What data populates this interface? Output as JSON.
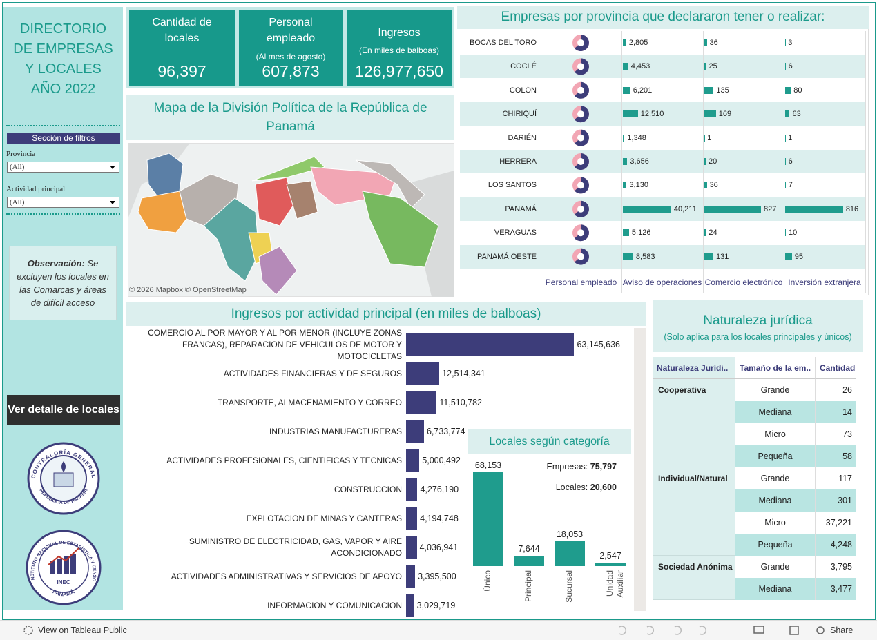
{
  "sidebar": {
    "title": "DIRECTORIO DE EMPRESAS Y LOCALES AÑO 2022",
    "filters_heading": "Sección de filtros",
    "filters": [
      {
        "label": "Provincia",
        "value": "(All)"
      },
      {
        "label": "Actividad  principal",
        "value": "(All)"
      }
    ],
    "note_label": "Observación:",
    "note_text": "Se excluyen los locales en las Comarcas y áreas de difícil acceso",
    "button": "Ver detalle de locales",
    "logos": [
      "CONTRALORÍA GENERAL",
      "REPÚBLICA DE PANAMÁ",
      "INSTITUTO NACIONAL DE ESTADÍSTICA Y CENSO",
      "INEC",
      "PANAMÁ"
    ]
  },
  "kpis": [
    {
      "label": "Cantidad de locales",
      "value": "96,397"
    },
    {
      "label": "Personal empleado",
      "sublabel": "(Al mes de agosto)",
      "value": "607,873"
    },
    {
      "label": "Ingresos",
      "sublabel": "(En miles de balboas)",
      "value": "126,977,650"
    }
  ],
  "map": {
    "title": "Mapa de la División Política de la República de Panamá",
    "attribution": "© 2026 Mapbox © OpenStreetMap"
  },
  "chart_data": [
    {
      "type": "bar",
      "title": "Empresas por provincia que declararon tener o realizar:",
      "donut_label": "Personal empleado",
      "categories": [
        "BOCAS DEL TORO",
        "COCLÉ",
        "COLÓN",
        "CHIRIQUÍ",
        "DARIÉN",
        "HERRERA",
        "LOS SANTOS",
        "PANAMÁ",
        "VERAGUAS",
        "PANAMÁ OESTE"
      ],
      "series": [
        {
          "name": "Aviso de operaciones",
          "color": "#1f9c8d",
          "xlim": [
            0,
            65000
          ],
          "values": [
            2805,
            4453,
            6201,
            12510,
            1348,
            3656,
            3130,
            40211,
            5126,
            8583
          ],
          "value_labels": [
            "2,805",
            "4,453",
            "6,201",
            "12,510",
            "1,348",
            "3,656",
            "3,130",
            "40,211",
            "5,126",
            "8,583"
          ]
        },
        {
          "name": "Comercio electrónico",
          "color": "#1f9c8d",
          "xlim": [
            0,
            1140
          ],
          "values": [
            36,
            25,
            135,
            169,
            1,
            20,
            36,
            827,
            24,
            131
          ]
        },
        {
          "name": "Inversión extranjera",
          "color": "#1f9c8d",
          "xlim": [
            0,
            1100
          ],
          "values": [
            3,
            6,
            80,
            63,
            1,
            6,
            7,
            816,
            10,
            95
          ]
        }
      ]
    },
    {
      "type": "bar",
      "orientation": "horizontal",
      "title": "Ingresos por actividad principal (en miles de balboas)",
      "color": "#3d3d7a",
      "xlim": [
        0,
        90000000
      ],
      "categories": [
        "COMERCIO AL POR MAYOR Y AL POR MENOR (INCLUYE ZONAS FRANCAS), REPARACION DE VEHICULOS DE MOTOR Y MOTOCICLETAS",
        "ACTIVIDADES FINANCIERAS Y DE SEGUROS",
        "TRANSPORTE, ALMACENAMIENTO Y CORREO",
        "INDUSTRIAS MANUFACTURERAS",
        "ACTIVIDADES PROFESIONALES, CIENTIFICAS Y TECNICAS",
        "CONSTRUCCION",
        "EXPLOTACION DE MINAS Y CANTERAS",
        "SUMINISTRO DE ELECTRICIDAD, GAS, VAPOR Y AIRE ACONDICIONADO",
        "ACTIVIDADES ADMINISTRATIVAS Y SERVICIOS DE APOYO",
        "INFORMACION Y COMUNICACION"
      ],
      "values": [
        63145636,
        12514341,
        11510782,
        6733774,
        5000492,
        4276190,
        4194748,
        4036941,
        3395500,
        3029719
      ],
      "value_labels": [
        "63,145,636",
        "12,514,341",
        "11,510,782",
        "6,733,774",
        "5,000,492",
        "4,276,190",
        "4,194,748",
        "4,036,941",
        "3,395,500",
        "3,029,719"
      ]
    },
    {
      "type": "bar",
      "title": "Locales según categoría",
      "color": "#1f9c8d",
      "ylim": [
        0,
        80000
      ],
      "categories": [
        "Único",
        "Principal",
        "Sucursal",
        "Unidad Auxiliar"
      ],
      "values": [
        68153,
        7644,
        18053,
        2547
      ],
      "value_labels": [
        "68,153",
        "7,644",
        "18,053",
        "2,547"
      ],
      "annotations": [
        {
          "label": "Empresas:",
          "value": "75,797"
        },
        {
          "label": "Locales:",
          "value": "20,600"
        }
      ]
    }
  ],
  "table": {
    "title": "Naturaleza jurídica",
    "subtitle": "(Solo aplica para los locales principales y únicos)",
    "columns": [
      "Naturaleza Jurídi..",
      "Tamaño de la em..",
      "Cantidad"
    ],
    "groups": [
      {
        "name": "Cooperativa",
        "rows": [
          [
            "Grande",
            "26"
          ],
          [
            "Mediana",
            "14"
          ],
          [
            "Micro",
            "73"
          ],
          [
            "Pequeña",
            "58"
          ]
        ]
      },
      {
        "name": "Individual/Natural",
        "rows": [
          [
            "Grande",
            "117"
          ],
          [
            "Mediana",
            "301"
          ],
          [
            "Micro",
            "37,221"
          ],
          [
            "Pequeña",
            "4,248"
          ]
        ]
      },
      {
        "name": "Sociedad Anónima",
        "rows": [
          [
            "Grande",
            "3,795"
          ],
          [
            "Mediana",
            "3,477"
          ]
        ]
      }
    ]
  },
  "footer": {
    "view": "View on Tableau Public",
    "share": "Share"
  }
}
